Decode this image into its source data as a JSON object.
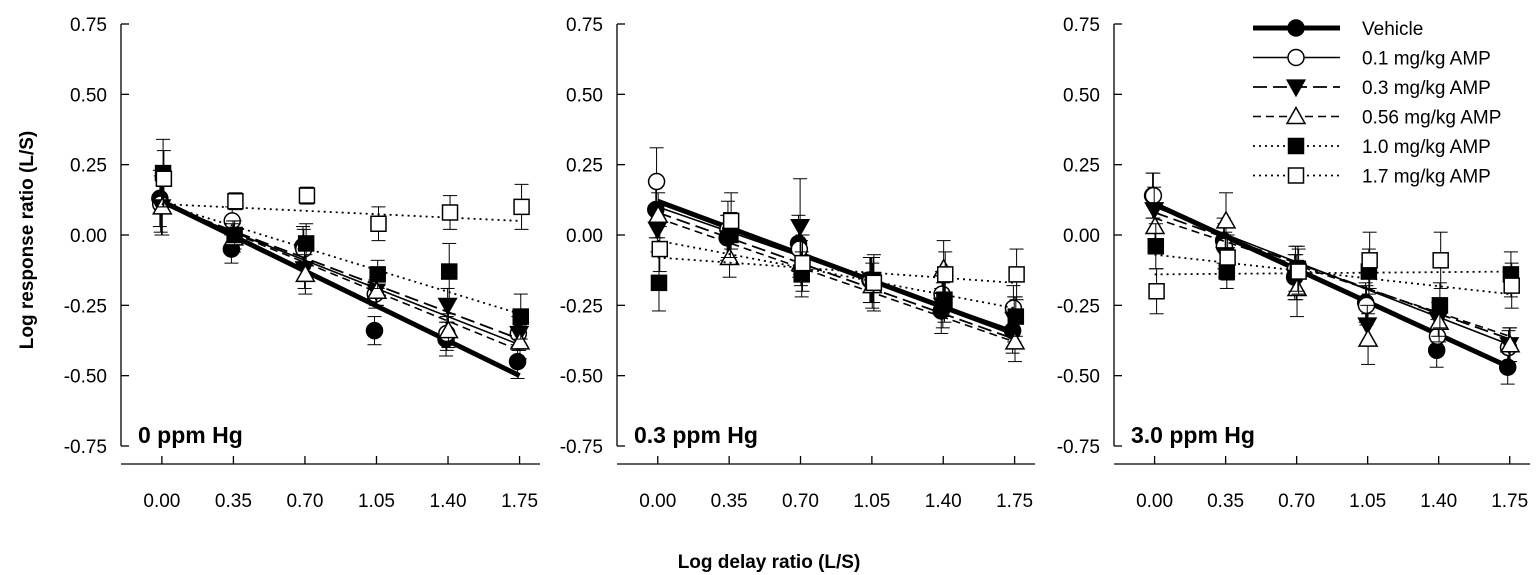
{
  "figure": {
    "ylabel": "Log response ratio (L/S)",
    "xlabel": "Log delay ratio (L/S)"
  },
  "legend": {
    "placement": "top-right",
    "entries": [
      {
        "label": "Vehicle",
        "marker": "filled-circle",
        "line": "solid-thick"
      },
      {
        "label": "0.1 mg/kg AMP",
        "marker": "open-circle",
        "line": "solid"
      },
      {
        "label": "0.3 mg/kg AMP",
        "marker": "filled-triangle-down",
        "line": "dashed-long"
      },
      {
        "label": "0.56 mg/kg AMP",
        "marker": "open-triangle-up",
        "line": "dashed"
      },
      {
        "label": "1.0 mg/kg AMP",
        "marker": "filled-square",
        "line": "dotted"
      },
      {
        "label": "1.7 mg/kg AMP",
        "marker": "open-square",
        "line": "dotted"
      }
    ]
  },
  "chart_data": [
    {
      "type": "scatter",
      "panel_label": "0 ppm Hg",
      "xlabel": "Log delay ratio (L/S)",
      "ylabel": "Log response ratio (L/S)",
      "xlim": [
        -0.2,
        1.85
      ],
      "ylim": [
        -0.75,
        0.75
      ],
      "x_ticks": [
        "0.00",
        "0.35",
        "0.70",
        "1.05",
        "1.40",
        "1.75"
      ],
      "y_ticks": [
        "0.75",
        "0.50",
        "0.25",
        "0.00",
        "-0.25",
        "-0.50",
        "-0.75"
      ],
      "grid": false,
      "x": [
        0.0,
        0.35,
        0.7,
        1.05,
        1.4,
        1.75
      ],
      "series": [
        {
          "name": "Vehicle",
          "values": [
            0.13,
            -0.05,
            -0.04,
            -0.34,
            -0.37,
            -0.45
          ],
          "errors": [
            0.1,
            0.05,
            0.07,
            0.05,
            0.06,
            0.06
          ],
          "fit": [
            0.12,
            -0.5
          ]
        },
        {
          "name": "0.1 mg/kg AMP",
          "values": [
            0.11,
            0.05,
            -0.05,
            -0.21,
            -0.35,
            -0.35
          ],
          "errors": [
            0.1,
            0.05,
            0.07,
            0.05,
            0.06,
            0.06
          ],
          "fit": [
            0.11,
            -0.39
          ]
        },
        {
          "name": "0.3 mg/kg AMP",
          "values": [
            0.1,
            0.0,
            -0.12,
            -0.2,
            -0.25,
            -0.35
          ],
          "errors": [
            0.1,
            0.05,
            0.07,
            0.05,
            0.06,
            0.06
          ],
          "fit": [
            0.11,
            -0.37
          ]
        },
        {
          "name": "0.56 mg/kg AMP",
          "values": [
            0.1,
            -0.01,
            -0.14,
            -0.2,
            -0.34,
            -0.38
          ],
          "errors": [
            0.1,
            0.05,
            0.07,
            0.05,
            0.06,
            0.06
          ],
          "fit": [
            0.11,
            -0.41
          ]
        },
        {
          "name": "1.0 mg/kg AMP",
          "values": [
            0.22,
            0.0,
            -0.03,
            -0.14,
            -0.13,
            -0.29
          ],
          "errors": [
            0.12,
            0.05,
            0.07,
            0.05,
            0.1,
            0.08
          ],
          "fit": [
            0.11,
            -0.28
          ]
        },
        {
          "name": "1.7 mg/kg AMP",
          "values": [
            0.2,
            0.12,
            0.14,
            0.04,
            0.08,
            0.1
          ],
          "errors": [
            0.1,
            0.03,
            0.03,
            0.06,
            0.06,
            0.08
          ],
          "fit": [
            0.11,
            0.05
          ]
        }
      ]
    },
    {
      "type": "scatter",
      "panel_label": "0.3 ppm Hg",
      "xlabel": "Log delay ratio (L/S)",
      "ylabel": "Log response ratio (L/S)",
      "xlim": [
        -0.2,
        1.85
      ],
      "ylim": [
        -0.75,
        0.75
      ],
      "x_ticks": [
        "0.00",
        "0.35",
        "0.70",
        "1.05",
        "1.40",
        "1.75"
      ],
      "y_ticks": [
        "0.75",
        "0.50",
        "0.25",
        "0.00",
        "-0.25",
        "-0.50",
        "-0.75"
      ],
      "grid": false,
      "x": [
        0.0,
        0.35,
        0.7,
        1.05,
        1.4,
        1.75
      ],
      "series": [
        {
          "name": "Vehicle",
          "values": [
            0.09,
            -0.01,
            -0.03,
            -0.16,
            -0.27,
            -0.34
          ],
          "errors": [
            0.1,
            0.08,
            0.1,
            0.08,
            0.08,
            0.08
          ],
          "fit": [
            0.12,
            -0.35
          ]
        },
        {
          "name": "0.1 mg/kg AMP",
          "values": [
            0.19,
            0.02,
            -0.05,
            -0.16,
            -0.21,
            -0.26
          ],
          "errors": [
            0.12,
            0.1,
            0.1,
            0.08,
            0.08,
            0.08
          ],
          "fit": [
            0.1,
            -0.34
          ]
        },
        {
          "name": "0.3 mg/kg AMP",
          "values": [
            0.02,
            -0.01,
            0.03,
            -0.16,
            -0.25,
            -0.3
          ],
          "errors": [
            0.08,
            0.08,
            0.17,
            0.08,
            0.08,
            0.08
          ],
          "fit": [
            0.08,
            -0.37
          ]
        },
        {
          "name": "0.56 mg/kg AMP",
          "values": [
            0.07,
            -0.08,
            -0.1,
            -0.18,
            -0.12,
            -0.38
          ],
          "errors": [
            0.08,
            0.07,
            0.08,
            0.08,
            0.1,
            0.07
          ],
          "fit": [
            0.06,
            -0.38
          ]
        },
        {
          "name": "1.0 mg/kg AMP",
          "values": [
            -0.17,
            0.0,
            -0.14,
            -0.16,
            -0.23,
            -0.29
          ],
          "errors": [
            0.1,
            0.08,
            0.08,
            0.08,
            0.08,
            0.07
          ],
          "fit": [
            -0.02,
            -0.26
          ]
        },
        {
          "name": "1.7 mg/kg AMP",
          "values": [
            -0.05,
            0.05,
            -0.1,
            -0.17,
            -0.14,
            -0.14
          ],
          "errors": [
            0.08,
            0.1,
            0.1,
            0.1,
            0.08,
            0.09
          ],
          "fit": [
            -0.08,
            -0.17
          ]
        }
      ]
    },
    {
      "type": "scatter",
      "panel_label": "3.0 ppm Hg",
      "xlabel": "Log delay ratio (L/S)",
      "ylabel": "Log response ratio (L/S)",
      "xlim": [
        -0.2,
        1.85
      ],
      "ylim": [
        -0.75,
        0.75
      ],
      "x_ticks": [
        "0.00",
        "0.35",
        "0.70",
        "1.05",
        "1.40",
        "1.75"
      ],
      "y_ticks": [
        "0.75",
        "0.50",
        "0.25",
        "0.00",
        "-0.25",
        "-0.50",
        "-0.75"
      ],
      "grid": false,
      "x": [
        0.0,
        0.35,
        0.7,
        1.05,
        1.4,
        1.75
      ],
      "series": [
        {
          "name": "Vehicle",
          "values": [
            0.14,
            -0.02,
            -0.15,
            -0.24,
            -0.41,
            -0.47
          ],
          "errors": [
            0.08,
            0.08,
            0.08,
            0.07,
            0.06,
            0.06
          ],
          "fit": [
            0.11,
            -0.47
          ]
        },
        {
          "name": "0.1 mg/kg AMP",
          "values": [
            0.14,
            -0.04,
            -0.12,
            -0.25,
            -0.36,
            -0.4
          ],
          "errors": [
            0.08,
            0.08,
            0.08,
            0.07,
            0.06,
            0.06
          ],
          "fit": [
            0.1,
            -0.39
          ]
        },
        {
          "name": "0.3 mg/kg AMP",
          "values": [
            0.09,
            -0.07,
            -0.15,
            -0.32,
            -0.3,
            -0.39
          ],
          "errors": [
            0.08,
            0.08,
            0.08,
            0.07,
            0.06,
            0.06
          ],
          "fit": [
            0.08,
            -0.37
          ]
        },
        {
          "name": "0.56 mg/kg AMP",
          "values": [
            0.03,
            0.05,
            -0.19,
            -0.37,
            -0.31,
            -0.39
          ],
          "errors": [
            0.08,
            0.1,
            0.1,
            0.09,
            0.07,
            0.06
          ],
          "fit": [
            0.06,
            -0.36
          ]
        },
        {
          "name": "1.0 mg/kg AMP",
          "values": [
            -0.04,
            -0.13,
            -0.12,
            -0.13,
            -0.25,
            -0.14
          ],
          "errors": [
            0.08,
            0.06,
            0.08,
            0.08,
            0.08,
            0.08
          ],
          "fit": [
            -0.07,
            -0.21
          ]
        },
        {
          "name": "1.7 mg/kg AMP",
          "values": [
            -0.2,
            -0.08,
            -0.13,
            -0.09,
            -0.09,
            -0.18
          ],
          "errors": [
            0.08,
            0.08,
            0.08,
            0.1,
            0.1,
            0.08
          ],
          "fit": [
            -0.14,
            -0.13
          ]
        }
      ]
    }
  ]
}
